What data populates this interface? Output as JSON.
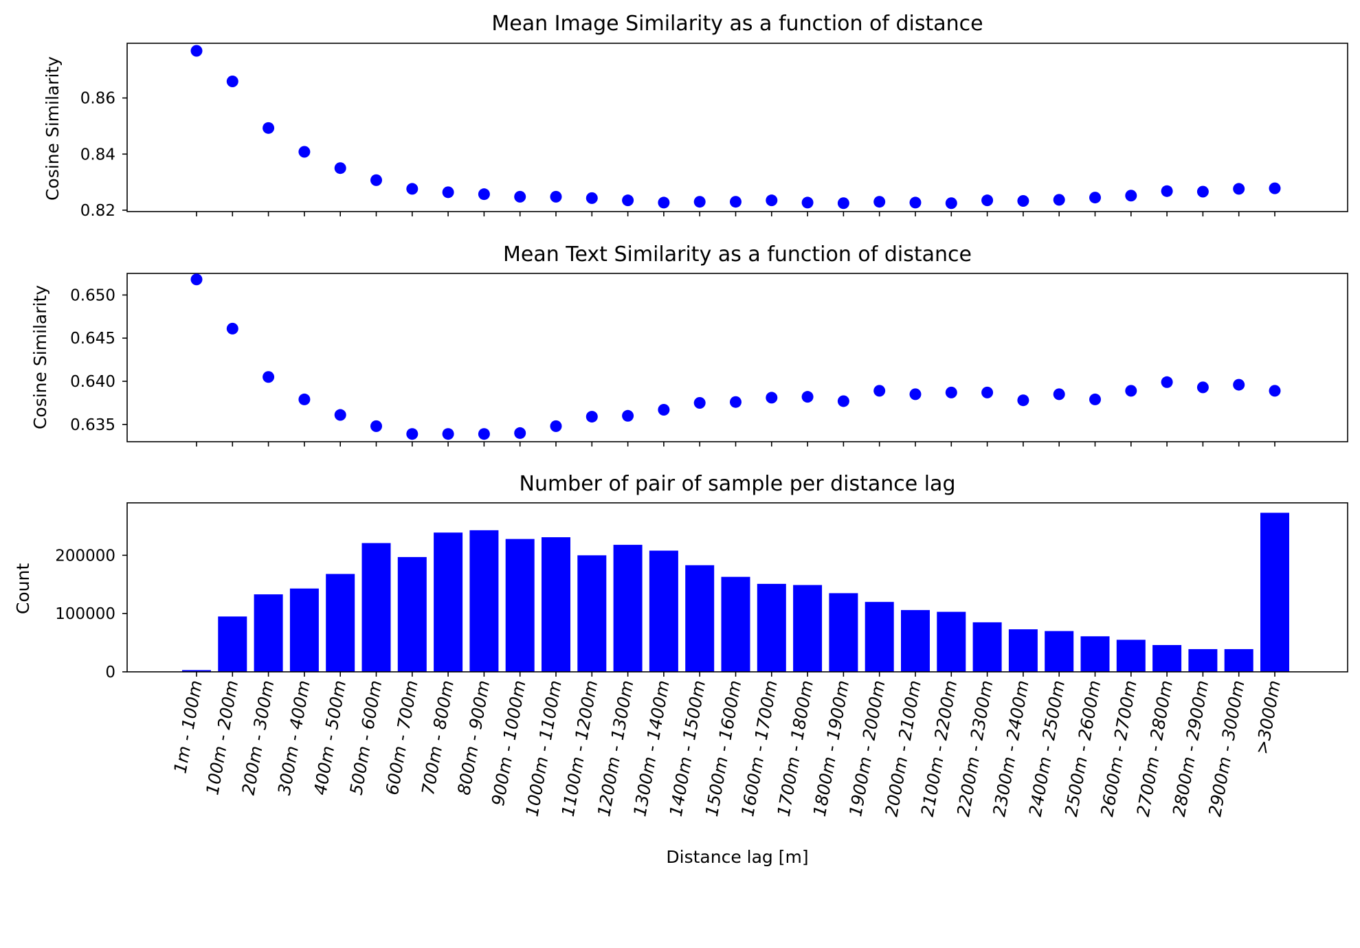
{
  "chart_data": [
    {
      "type": "scatter",
      "title": "Mean Image Similarity as a function of distance",
      "ylabel": "Cosine Similarity",
      "xlabel": "",
      "ylim": [
        0.8195,
        0.8795
      ],
      "yticks": [
        0.82,
        0.84,
        0.86
      ],
      "ytick_labels": [
        "0.82",
        "0.84",
        "0.86"
      ],
      "color": "#0000ff",
      "grid": false,
      "values": [
        0.8768,
        0.8659,
        0.8493,
        0.8408,
        0.835,
        0.8307,
        0.8276,
        0.8264,
        0.8257,
        0.8248,
        0.8248,
        0.8243,
        0.8235,
        0.8227,
        0.823,
        0.823,
        0.8235,
        0.8227,
        0.8225,
        0.823,
        0.8227,
        0.8225,
        0.8235,
        0.8233,
        0.8237,
        0.8245,
        0.8252,
        0.8268,
        0.8266,
        0.8276,
        0.8278
      ]
    },
    {
      "type": "scatter",
      "title": "Mean Text Similarity as a function of distance",
      "ylabel": "Cosine Similarity",
      "xlabel": "",
      "ylim": [
        0.633,
        0.6525
      ],
      "yticks": [
        0.635,
        0.64,
        0.645,
        0.65
      ],
      "ytick_labels": [
        "0.635",
        "0.640",
        "0.645",
        "0.650"
      ],
      "color": "#0000ff",
      "grid": false,
      "values": [
        0.6518,
        0.6461,
        0.6405,
        0.6379,
        0.6361,
        0.6348,
        0.6339,
        0.6339,
        0.6339,
        0.634,
        0.6348,
        0.6359,
        0.636,
        0.6367,
        0.6375,
        0.6376,
        0.6381,
        0.6382,
        0.6377,
        0.6389,
        0.6385,
        0.6387,
        0.6387,
        0.6378,
        0.6385,
        0.6379,
        0.6389,
        0.6399,
        0.6393,
        0.6396,
        0.6389
      ]
    },
    {
      "type": "bar",
      "title": "Number of pair of sample per distance lag",
      "ylabel": "Count",
      "xlabel": "Distance lag [m]",
      "ylim": [
        0,
        290000
      ],
      "yticks": [
        0,
        100000,
        200000
      ],
      "ytick_labels": [
        "0",
        "100000",
        "200000"
      ],
      "color": "#0000ff",
      "grid": false,
      "values": [
        3000,
        95000,
        133000,
        143000,
        168000,
        221000,
        197000,
        239000,
        243000,
        228000,
        231000,
        200000,
        218000,
        208000,
        183000,
        163000,
        151000,
        149000,
        135000,
        120000,
        106000,
        103000,
        85000,
        73000,
        70000,
        61000,
        55000,
        46000,
        39000,
        39000,
        273000
      ]
    }
  ],
  "categories": [
    "1m - 100m",
    "100m - 200m",
    "200m - 300m",
    "300m - 400m",
    "400m - 500m",
    "500m - 600m",
    "600m - 700m",
    "700m - 800m",
    "800m - 900m",
    "900m - 1000m",
    "1000m - 1100m",
    "1100m - 1200m",
    "1200m - 1300m",
    "1300m - 1400m",
    "1400m - 1500m",
    "1500m - 1600m",
    "1600m - 1700m",
    "1700m - 1800m",
    "1800m - 1900m",
    "1900m - 2000m",
    "2000m - 2100m",
    "2100m - 2200m",
    "2200m - 2300m",
    "2300m - 2400m",
    "2400m - 2500m",
    "2500m - 2600m",
    "2600m - 2700m",
    "2700m - 2800m",
    "2800m - 2900m",
    "2900m - 3000m",
    ">3000m"
  ]
}
